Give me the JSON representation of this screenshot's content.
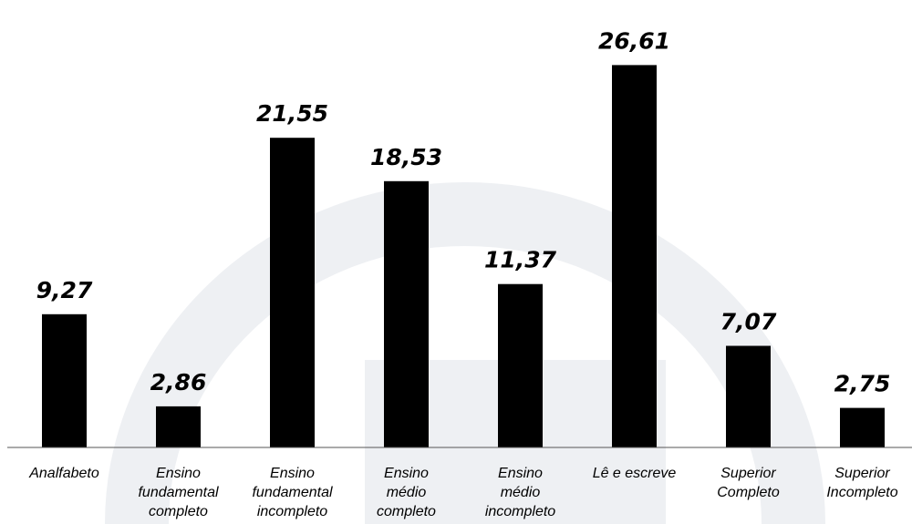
{
  "chart_data": {
    "type": "bar",
    "title": "",
    "xlabel": "",
    "ylabel": "",
    "ylim": [
      0,
      30
    ],
    "grid": false,
    "categories": [
      [
        "Analfabeto"
      ],
      [
        "Ensino",
        "fundamental",
        "completo"
      ],
      [
        "Ensino",
        "fundamental",
        "incompleto"
      ],
      [
        "Ensino",
        "médio",
        "completo"
      ],
      [
        "Ensino",
        "médio",
        "incompleto"
      ],
      [
        "Lê e escreve"
      ],
      [
        "Superior",
        "Completo"
      ],
      [
        "Superior",
        "Incompleto"
      ]
    ],
    "values": [
      9.27,
      2.86,
      21.55,
      18.53,
      11.37,
      26.61,
      7.07,
      2.75
    ],
    "value_labels": [
      "9,27",
      "2,86",
      "21,55",
      "18,53",
      "11,37",
      "26,61",
      "7,07",
      "2,75"
    ],
    "bar_color": "#000000",
    "axis_color": "#555555",
    "watermark_color": "#eef0f3"
  }
}
